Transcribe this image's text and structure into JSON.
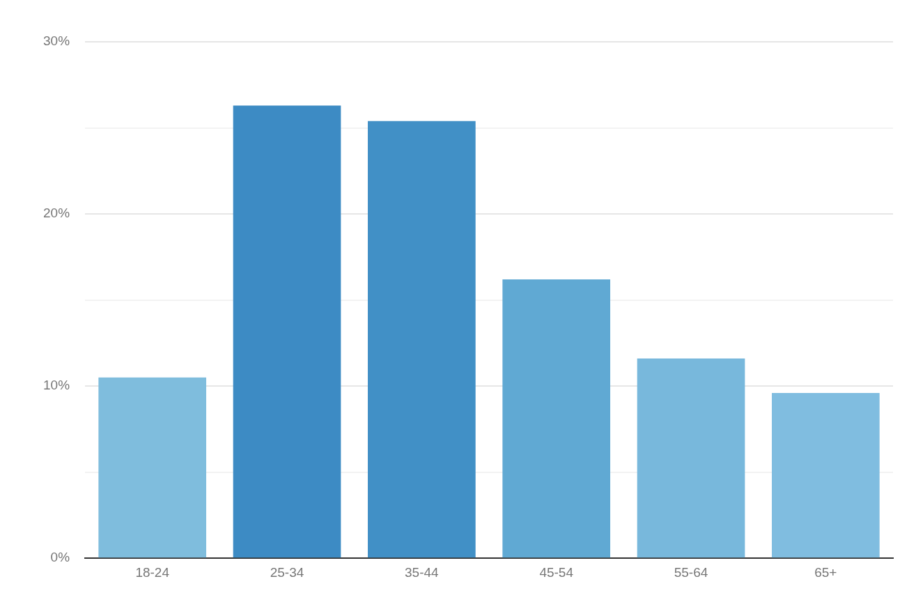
{
  "chart_data": {
    "type": "bar",
    "categories": [
      "18-24",
      "25-34",
      "35-44",
      "45-54",
      "55-64",
      "65+"
    ],
    "values": [
      10.5,
      26.3,
      25.4,
      16.2,
      11.6,
      9.6
    ],
    "colors": [
      "#7fbddd",
      "#3d8bc4",
      "#4190c6",
      "#60a9d3",
      "#78b8dc",
      "#80bde0"
    ],
    "ylim": [
      0,
      30
    ],
    "yticks": [
      {
        "value": 0,
        "label": "0%"
      },
      {
        "value": 5,
        "label": null
      },
      {
        "value": 10,
        "label": "10%"
      },
      {
        "value": 15,
        "label": null
      },
      {
        "value": 20,
        "label": "20%"
      },
      {
        "value": 25,
        "label": null
      },
      {
        "value": 30,
        "label": "30%"
      }
    ],
    "grid": "y"
  }
}
